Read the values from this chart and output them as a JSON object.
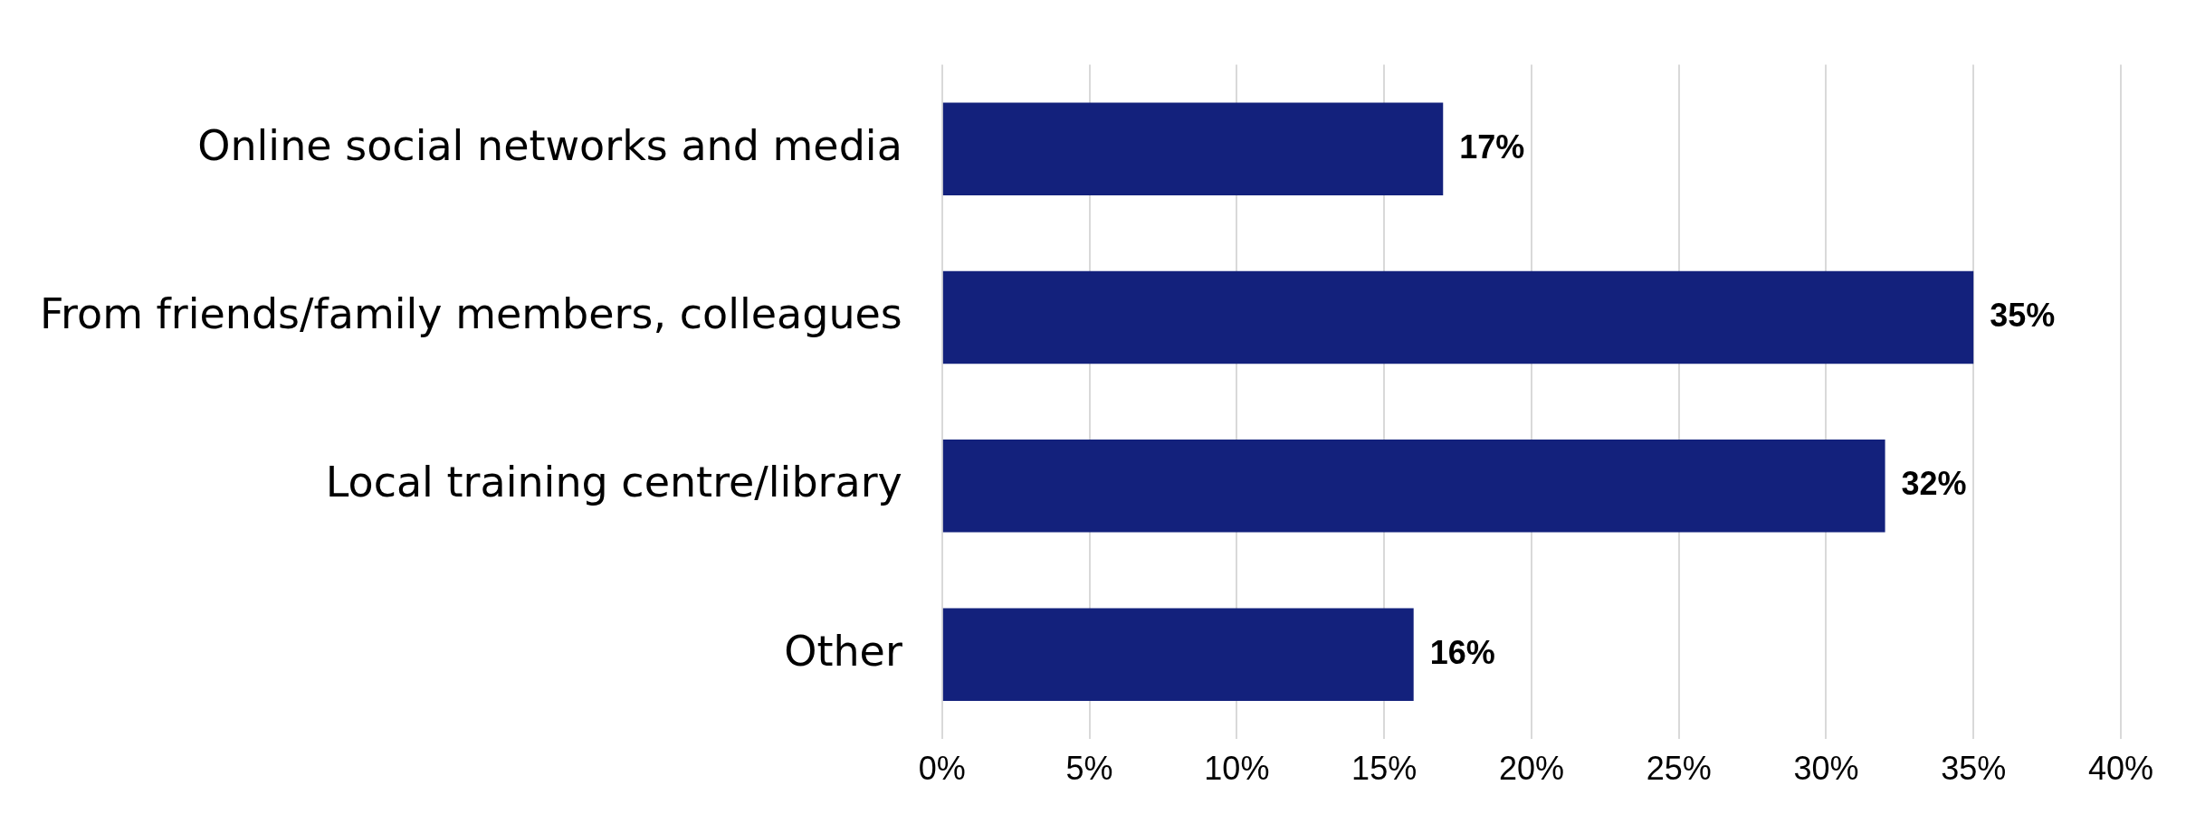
{
  "chart_data": {
    "type": "bar",
    "orientation": "horizontal",
    "categories": [
      "Online social networks and media",
      "From friends/family members, colleagues",
      "Local training centre/library",
      "Other"
    ],
    "values": [
      17,
      35,
      32,
      16
    ],
    "value_labels": [
      "17%",
      "35%",
      "32%",
      "16%"
    ],
    "color": "#13217c",
    "xlim": [
      0,
      40
    ],
    "xticks": [
      {
        "value": 0,
        "label": "0%"
      },
      {
        "value": 5,
        "label": "5%"
      },
      {
        "value": 10,
        "label": "10%"
      },
      {
        "value": 15,
        "label": "15%"
      },
      {
        "value": 20,
        "label": "20%"
      },
      {
        "value": 25,
        "label": "25%"
      },
      {
        "value": 30,
        "label": "30%"
      },
      {
        "value": 35,
        "label": "35%"
      },
      {
        "value": 40,
        "label": "40%"
      }
    ],
    "grid": "x",
    "legend": false
  }
}
